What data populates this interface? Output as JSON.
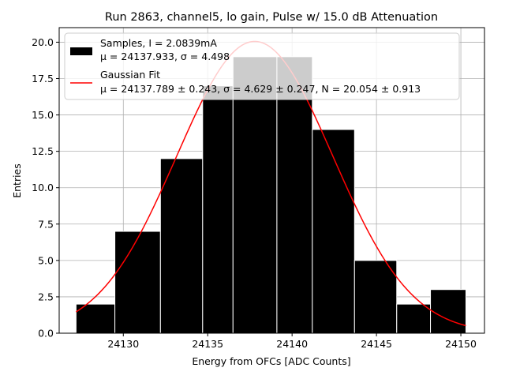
{
  "chart_data": {
    "type": "bar",
    "title": "Run 2863, channel5, lo gain, Pulse w/ 15.0 dB Attenuation",
    "xlabel": "Energy from OFCs [ADC Counts]",
    "ylabel": "Entries",
    "xlim": [
      24126.2,
      24151.4
    ],
    "ylim": [
      0,
      21
    ],
    "grid": true,
    "x_ticks": [
      24130,
      24135,
      24140,
      24145,
      24150
    ],
    "y_ticks": [
      0.0,
      2.5,
      5.0,
      7.5,
      10.0,
      12.5,
      15.0,
      17.5,
      20.0
    ],
    "bins": [
      {
        "left": 24127.2,
        "right": 24129.5,
        "count": 2
      },
      {
        "left": 24129.5,
        "right": 24132.2,
        "count": 7
      },
      {
        "left": 24132.2,
        "right": 24134.7,
        "count": 12
      },
      {
        "left": 24134.7,
        "right": 24136.5,
        "count": 17
      },
      {
        "left": 24136.5,
        "right": 24139.1,
        "count": 19
      },
      {
        "left": 24139.1,
        "right": 24141.2,
        "count": 19
      },
      {
        "left": 24141.2,
        "right": 24143.7,
        "count": 14
      },
      {
        "left": 24143.7,
        "right": 24146.2,
        "count": 5
      },
      {
        "left": 24146.2,
        "right": 24148.2,
        "count": 2
      },
      {
        "left": 24148.2,
        "right": 24150.3,
        "count": 3
      }
    ],
    "fit": {
      "mu": 24137.789,
      "sigma": 4.629,
      "N": 20.054,
      "x_range": [
        24127.2,
        24150.3
      ]
    },
    "legend": {
      "position": "upper-left",
      "entries": [
        {
          "name": "Samples, I = 2.0839mA",
          "sub": "μ = 24137.933, σ = 4.498",
          "style": "bar",
          "color": "#000000"
        },
        {
          "name": "Gaussian Fit",
          "sub": "μ = 24137.789 ± 0.243, σ = 4.629 ± 0.247, N = 20.054 ± 0.913",
          "style": "line",
          "color": "#ff0000"
        }
      ]
    }
  }
}
